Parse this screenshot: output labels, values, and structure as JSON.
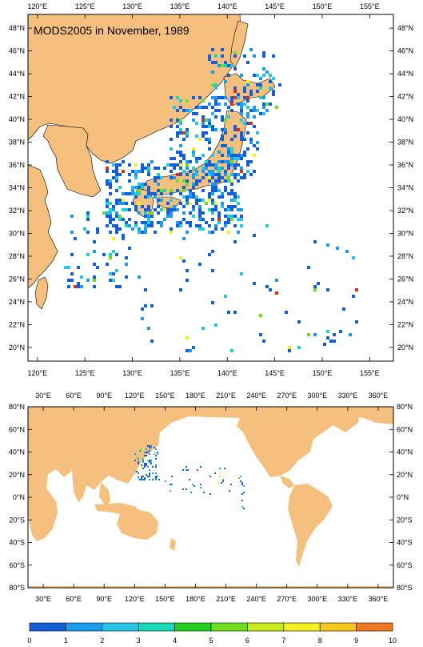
{
  "regional_map": {
    "title": "MODS2005 in November, 1989",
    "lon_ticks": [
      "120°E",
      "125°E",
      "130°E",
      "135°E",
      "140°E",
      "145°E",
      "150°E",
      "155°E"
    ],
    "lat_ticks": [
      "20°N",
      "22°N",
      "24°N",
      "26°N",
      "28°N",
      "30°N",
      "32°N",
      "34°N",
      "36°N",
      "38°N",
      "40°N",
      "42°N",
      "44°N",
      "46°N",
      "48°N"
    ],
    "lon_range": [
      119,
      157.5
    ],
    "lat_range": [
      18.8,
      49.2
    ]
  },
  "global_map": {
    "lon_ticks": [
      "30°E",
      "60°E",
      "90°E",
      "120°E",
      "150°E",
      "180°E",
      "210°E",
      "240°E",
      "270°E",
      "300°E",
      "330°E",
      "360°E"
    ],
    "lat_ticks": [
      "80°S",
      "60°S",
      "40°S",
      "20°S",
      "0°N",
      "20°N",
      "40°N",
      "60°N",
      "80°N"
    ],
    "lon_range": [
      15,
      375
    ],
    "lat_range": [
      -80,
      80
    ]
  },
  "colorbar": {
    "labels": [
      "0",
      "1",
      "2",
      "3",
      "4",
      "5",
      "6",
      "7",
      "8",
      "9",
      "10"
    ],
    "colors": [
      "#1560d8",
      "#1b9cf0",
      "#27c6e6",
      "#18dab8",
      "#22d020",
      "#6fe020",
      "#c9ec20",
      "#f5f020",
      "#f6c81c",
      "#f07a20",
      "#e82a14"
    ]
  },
  "colors": {
    "land": "#f5c07e",
    "coast": "#000000"
  }
}
